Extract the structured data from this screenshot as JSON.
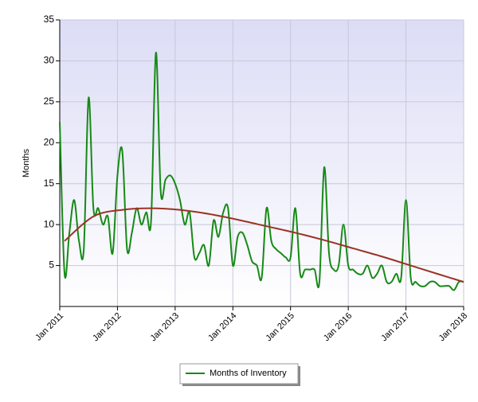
{
  "chart_data": {
    "type": "line",
    "y_label": "Months",
    "x": [
      "2011-01",
      "2011-02",
      "2011-03",
      "2011-04",
      "2011-05",
      "2011-06",
      "2011-07",
      "2011-08",
      "2011-09",
      "2011-10",
      "2011-11",
      "2011-12",
      "2012-01",
      "2012-02",
      "2012-03",
      "2012-04",
      "2012-05",
      "2012-06",
      "2012-07",
      "2012-08",
      "2012-09",
      "2012-10",
      "2012-11",
      "2012-12",
      "2013-01",
      "2013-02",
      "2013-03",
      "2013-04",
      "2013-05",
      "2013-06",
      "2013-07",
      "2013-08",
      "2013-09",
      "2013-10",
      "2013-11",
      "2013-12",
      "2014-01",
      "2014-02",
      "2014-03",
      "2014-04",
      "2014-05",
      "2014-06",
      "2014-07",
      "2014-08",
      "2014-09",
      "2014-10",
      "2014-11",
      "2014-12",
      "2015-01",
      "2015-02",
      "2015-03",
      "2015-04",
      "2015-05",
      "2015-06",
      "2015-07",
      "2015-08",
      "2015-09",
      "2015-10",
      "2015-11",
      "2015-12",
      "2016-01",
      "2016-02",
      "2016-03",
      "2016-04",
      "2016-05",
      "2016-06",
      "2016-07",
      "2016-08",
      "2016-09",
      "2016-10",
      "2016-11",
      "2016-12",
      "2017-01",
      "2017-02",
      "2017-03",
      "2017-04",
      "2017-05",
      "2017-06",
      "2017-07",
      "2017-08",
      "2017-09",
      "2017-10",
      "2017-11",
      "2017-12",
      "2018-01"
    ],
    "series": [
      {
        "name": "Months of Inventory",
        "color": "#168a16",
        "values": [
          22.5,
          4,
          9,
          13,
          8,
          7,
          25.5,
          12,
          12,
          10,
          11,
          6.5,
          16,
          19,
          7,
          9,
          12,
          10,
          11.5,
          10.5,
          31,
          14,
          15.5,
          16,
          15,
          13,
          10,
          11.5,
          6,
          6.5,
          7.5,
          5,
          10.5,
          8.5,
          11.5,
          12,
          5,
          8.5,
          9,
          7.5,
          5.5,
          5,
          3.5,
          12,
          8,
          7,
          6.5,
          6,
          6,
          12,
          4,
          4.5,
          4.5,
          4.5,
          3,
          17,
          6.5,
          4.5,
          5,
          10,
          5,
          4.5,
          4,
          4,
          5,
          3.5,
          4,
          5,
          3,
          3,
          4,
          3.5,
          13,
          3.5,
          3,
          2.5,
          2.5,
          3,
          3,
          2.5,
          2.5,
          2.5,
          2,
          3,
          3
        ]
      },
      {
        "color": "#9b3225",
        "x": [
          "2011-02",
          "2011-08",
          "2012-02",
          "2012-08",
          "2013-02",
          "2013-08",
          "2014-02",
          "2014-08",
          "2015-02",
          "2015-08",
          "2016-02",
          "2016-08",
          "2017-02",
          "2017-08",
          "2018-01"
        ],
        "values": [
          8,
          11,
          11.8,
          12,
          11.8,
          11.3,
          10.6,
          9.8,
          9,
          8.1,
          7.1,
          6.1,
          5,
          3.9,
          3
        ]
      }
    ],
    "xlim": [
      "2011-01",
      "2018-01"
    ],
    "xticks": [
      {
        "value": "2011-01",
        "label": "Jan 2011"
      },
      {
        "value": "2012-01",
        "label": "Jan 2012"
      },
      {
        "value": "2013-01",
        "label": "Jan 2013"
      },
      {
        "value": "2014-01",
        "label": "Jan 2014"
      },
      {
        "value": "2015-01",
        "label": "Jan 2015"
      },
      {
        "value": "2016-01",
        "label": "Jan 2016"
      },
      {
        "value": "2017-01",
        "label": "Jan 2017"
      },
      {
        "value": "2018-01",
        "label": "Jan 2018"
      }
    ],
    "ylim": [
      0,
      35
    ],
    "yticks": [
      5,
      10,
      15,
      20,
      25,
      30,
      35
    ],
    "grid": true
  }
}
